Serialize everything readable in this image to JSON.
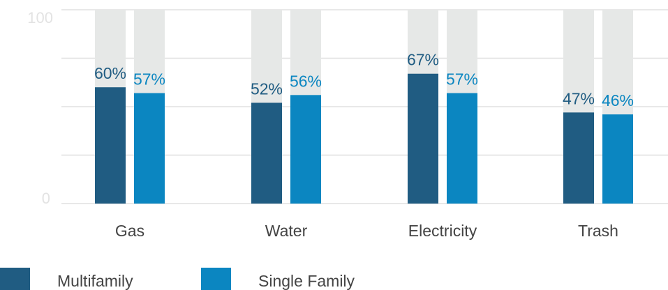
{
  "chart_data": {
    "type": "bar",
    "categories": [
      "Gas",
      "Water",
      "Electricity",
      "Trash"
    ],
    "series": [
      {
        "name": "Multifamily",
        "values": [
          60,
          52,
          67,
          47
        ],
        "labels": [
          "60%",
          "52%",
          "67%",
          "47%"
        ]
      },
      {
        "name": "Single Family",
        "values": [
          57,
          56,
          57,
          46
        ],
        "labels": [
          "57%",
          "56%",
          "57%",
          "46%"
        ]
      }
    ],
    "y_ticks": [
      "100",
      "0"
    ],
    "ylim": [
      0,
      100
    ],
    "grid": true,
    "background_bars": true,
    "legend_position": "bottom-left"
  },
  "colors": {
    "series": [
      "#205c82",
      "#0b86c1"
    ],
    "background_bar": "#e6e8e7",
    "grid": "#e0e0e0",
    "tick_text": "#e3e3e3",
    "category_text": "#444444"
  }
}
